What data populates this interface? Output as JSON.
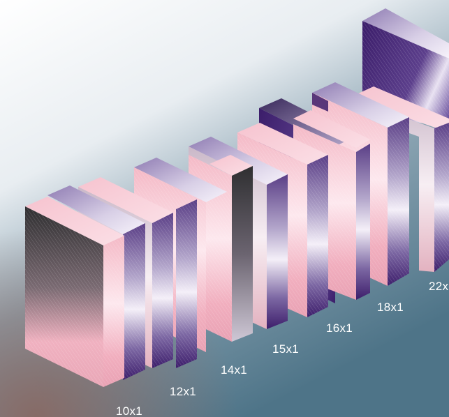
{
  "palette": {
    "pink": "#f4b9c6",
    "pink_light": "#fde8ee",
    "violet": "#3d1e6b",
    "violet_mid": "#8c7aad",
    "charcoal": "#3a3a3c",
    "backdrop_teal": "#4e7488",
    "backdrop_rust": "#8a6760"
  },
  "groups": [
    {
      "label": "10x1",
      "front_style": "pink-charcoal",
      "side_style": "violet"
    },
    {
      "label": "12x1",
      "front_style": "pink",
      "side_style": "violet"
    },
    {
      "label": "14x1",
      "front_style": "pink",
      "side_style": "violet"
    },
    {
      "label": "15x1",
      "front_style": "pink",
      "side_style": "violet"
    },
    {
      "label": "16x1",
      "front_style": "pink",
      "side_style": "violet"
    },
    {
      "label": "18x1",
      "front_style": "pink",
      "side_style": "violet"
    },
    {
      "label": "22x",
      "front_style": "violet",
      "side_style": "violet"
    }
  ]
}
